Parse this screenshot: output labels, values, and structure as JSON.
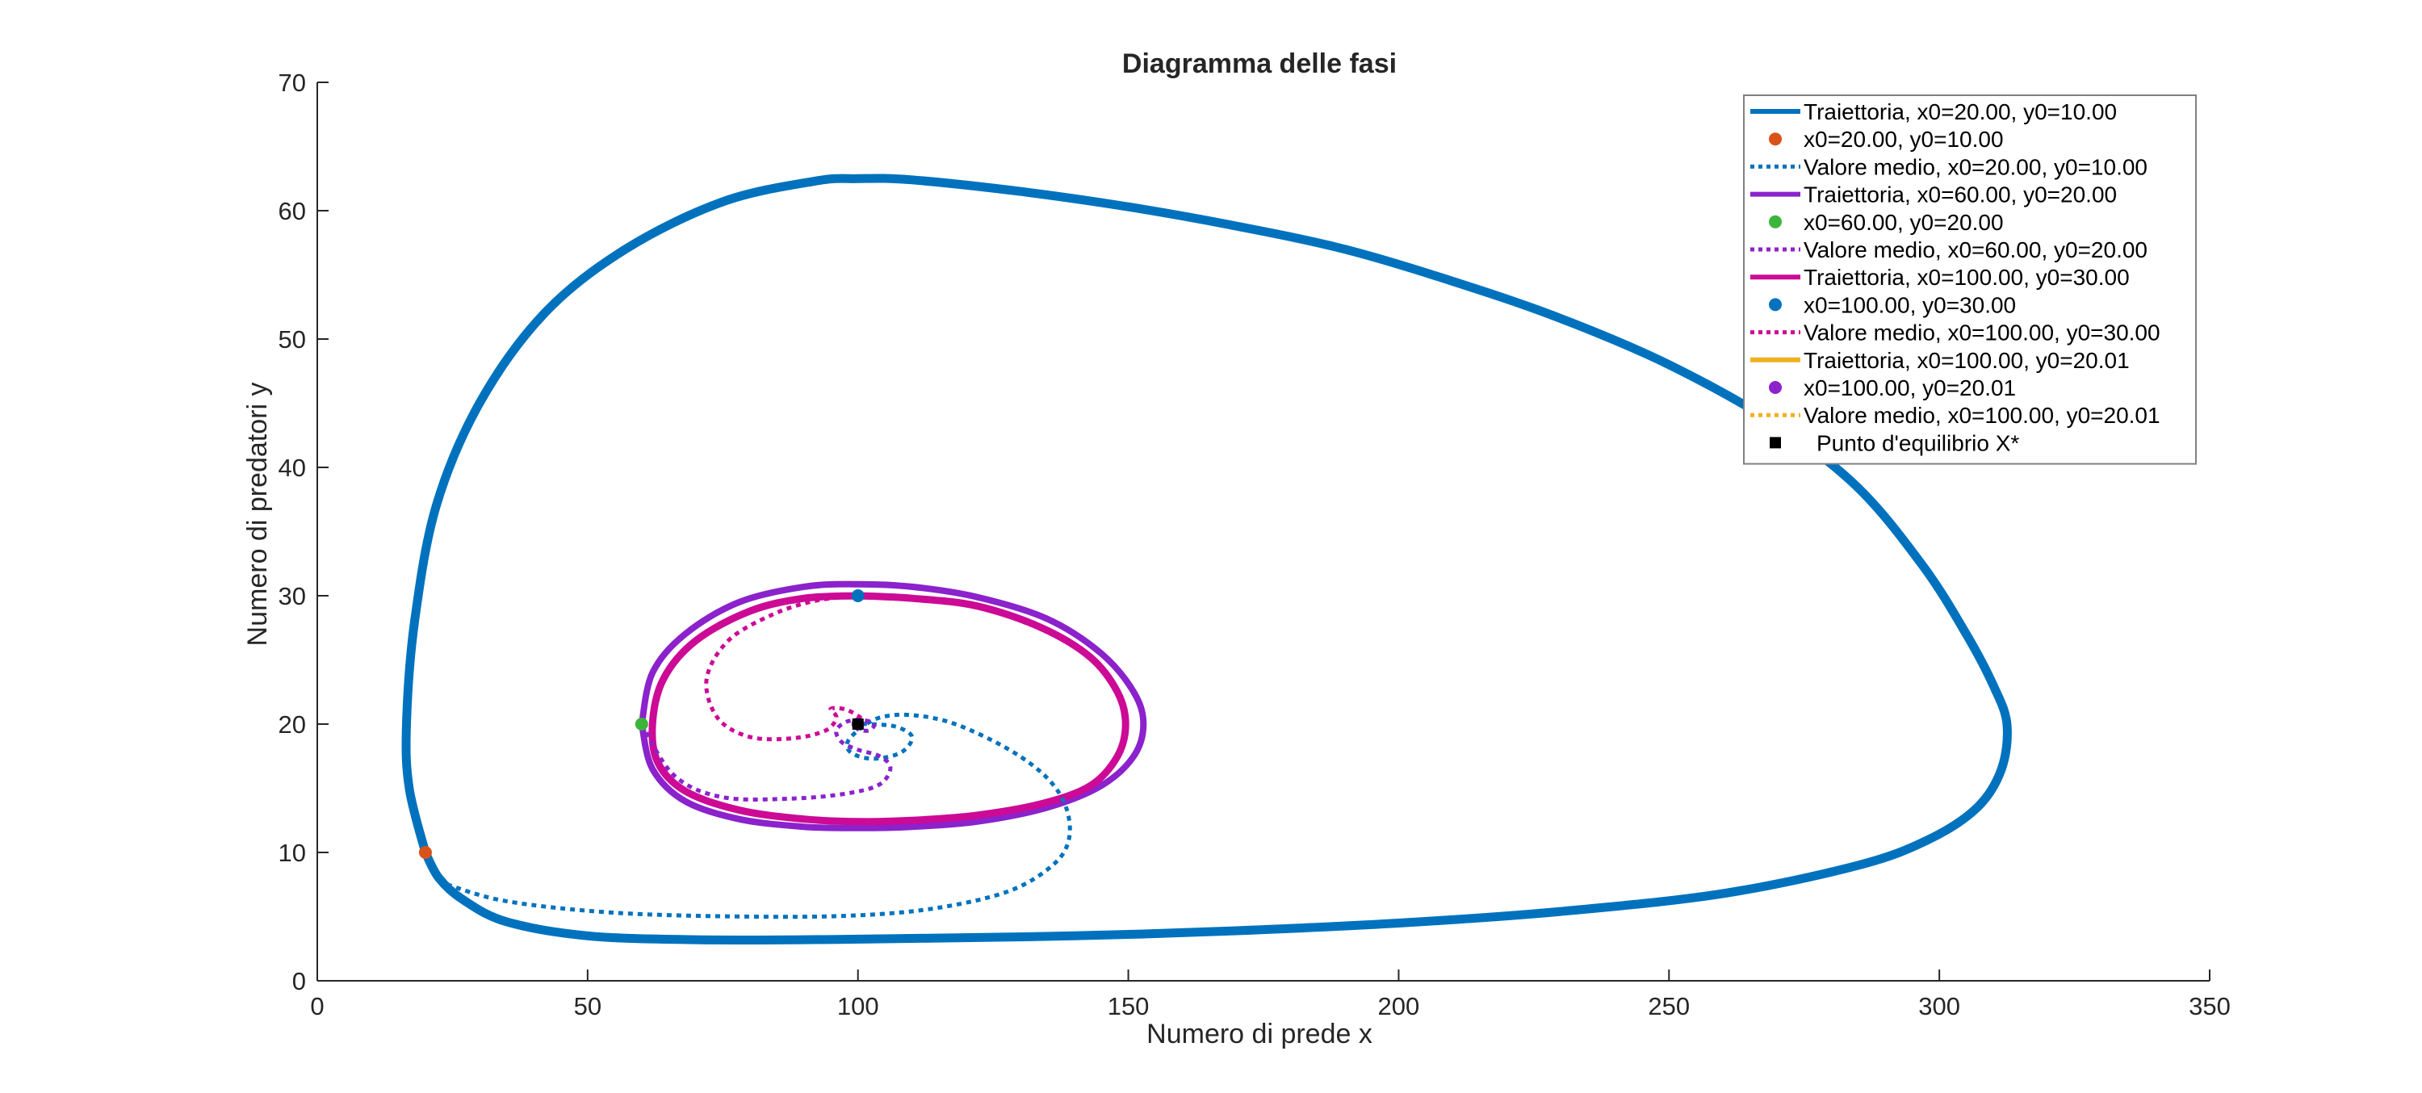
{
  "chart_data": {
    "type": "line",
    "title": "Diagramma delle fasi",
    "xlabel": "Numero di prede x",
    "ylabel": "Numero di predatori y",
    "xlim": [
      0,
      350
    ],
    "ylim": [
      0,
      70
    ],
    "xticks": [
      "0",
      "50",
      "100",
      "150",
      "200",
      "250",
      "300",
      "350"
    ],
    "yticks": [
      "0",
      "10",
      "20",
      "30",
      "40",
      "50",
      "60",
      "70"
    ],
    "grid": false,
    "legend_position": "top-right",
    "colors": {
      "blue": "#0072BD",
      "orange": "#D95319",
      "yellow": "#EDB120",
      "purple": "#7E2F8E",
      "violet": "#8B22CC",
      "green": "#3CB43C",
      "magenta": "#CC0A96",
      "black": "#000000"
    },
    "trajectories": [
      {
        "name": "Traiettoria, x0=20.00, y0=10.00",
        "color": "#0072BD",
        "points": [
          [
            20,
            10
          ],
          [
            17,
            15
          ],
          [
            16.5,
            20
          ],
          [
            18,
            28
          ],
          [
            22,
            37
          ],
          [
            30,
            45
          ],
          [
            42,
            52
          ],
          [
            57,
            57
          ],
          [
            75,
            60.7
          ],
          [
            92,
            62.3
          ],
          [
            100,
            62.5
          ],
          [
            110,
            62.4
          ],
          [
            130,
            61.5
          ],
          [
            150,
            60.3
          ],
          [
            170,
            58.8
          ],
          [
            190,
            57
          ],
          [
            210,
            54.5
          ],
          [
            230,
            51.6
          ],
          [
            250,
            48
          ],
          [
            270,
            43.3
          ],
          [
            285,
            38.4
          ],
          [
            297,
            32.3
          ],
          [
            305,
            27
          ],
          [
            310,
            23
          ],
          [
            312.5,
            20
          ],
          [
            311.5,
            16.5
          ],
          [
            307,
            13.5
          ],
          [
            298,
            11
          ],
          [
            285,
            9
          ],
          [
            260,
            6.8
          ],
          [
            230,
            5.4
          ],
          [
            200,
            4.5
          ],
          [
            170,
            3.9
          ],
          [
            140,
            3.5
          ],
          [
            110,
            3.3
          ],
          [
            90,
            3.2
          ],
          [
            70,
            3.2
          ],
          [
            50,
            3.5
          ],
          [
            35,
            4.6
          ],
          [
            27,
            6.3
          ],
          [
            22.5,
            8
          ],
          [
            20,
            10
          ]
        ]
      },
      {
        "name": "Traiettoria, x0=60.00, y0=20.00",
        "color": "#8B22CC",
        "points": [
          [
            60,
            20
          ],
          [
            62,
            24
          ],
          [
            68,
            27
          ],
          [
            78,
            29.5
          ],
          [
            90,
            30.7
          ],
          [
            100,
            30.9
          ],
          [
            110,
            30.7
          ],
          [
            122,
            29.9
          ],
          [
            135,
            28.2
          ],
          [
            145,
            25.5
          ],
          [
            151,
            22.5
          ],
          [
            152.8,
            20
          ],
          [
            151,
            17.5
          ],
          [
            145,
            15.2
          ],
          [
            135,
            13.5
          ],
          [
            122,
            12.4
          ],
          [
            110,
            12
          ],
          [
            100,
            11.9
          ],
          [
            90,
            12
          ],
          [
            78,
            12.6
          ],
          [
            68,
            14
          ],
          [
            62,
            16.5
          ],
          [
            60,
            20
          ]
        ]
      },
      {
        "name": "Traiettoria, x0=100.00, y0=30.00",
        "color": "#CC0A96",
        "points": [
          [
            100,
            30
          ],
          [
            110,
            29.8
          ],
          [
            122,
            29.2
          ],
          [
            134,
            27.5
          ],
          [
            143,
            25.2
          ],
          [
            148,
            22.5
          ],
          [
            149.5,
            20
          ],
          [
            148,
            17.5
          ],
          [
            143,
            15.2
          ],
          [
            134,
            13.8
          ],
          [
            122,
            12.9
          ],
          [
            110,
            12.5
          ],
          [
            100,
            12.4
          ],
          [
            90,
            12.6
          ],
          [
            78,
            13.3
          ],
          [
            68,
            14.8
          ],
          [
            63,
            17
          ],
          [
            62,
            20
          ],
          [
            64,
            23.5
          ],
          [
            70,
            26.5
          ],
          [
            80,
            28.8
          ],
          [
            90,
            29.8
          ],
          [
            100,
            30
          ]
        ]
      },
      {
        "name": "Traiettoria, x0=100.00, y0=20.01",
        "color": "#EDB120",
        "points": [
          [
            100,
            20.01
          ],
          [
            100.2,
            20.01
          ],
          [
            100.2,
            19.99
          ],
          [
            99.8,
            19.99
          ],
          [
            100,
            20.01
          ]
        ]
      }
    ],
    "mean_values": [
      {
        "name": "Valore medio, x0=20.00, y0=10.00",
        "color": "#0072BD",
        "points": [
          [
            24,
            7.5
          ],
          [
            35,
            6.2
          ],
          [
            55,
            5.3
          ],
          [
            80,
            5
          ],
          [
            100,
            5.1
          ],
          [
            115,
            5.7
          ],
          [
            128,
            7
          ],
          [
            136,
            9
          ],
          [
            139,
            11
          ],
          [
            138.5,
            13.5
          ],
          [
            135,
            15.8
          ],
          [
            128,
            18
          ],
          [
            118,
            20
          ],
          [
            110,
            20.7
          ],
          [
            104,
            20.5
          ],
          [
            100,
            19.5
          ],
          [
            98,
            18.5
          ],
          [
            99,
            17.7
          ],
          [
            103,
            17.3
          ],
          [
            108,
            17.8
          ],
          [
            110,
            19
          ],
          [
            107,
            19.8
          ],
          [
            102,
            20
          ],
          [
            100,
            20
          ]
        ]
      },
      {
        "name": "Valore medio, x0=60.00, y0=20.00",
        "color": "#8B22CC",
        "points": [
          [
            60,
            20
          ],
          [
            66,
            16
          ],
          [
            75,
            14.3
          ],
          [
            88,
            14.2
          ],
          [
            98,
            14.6
          ],
          [
            104,
            15.3
          ],
          [
            106,
            16.6
          ],
          [
            104,
            17.5
          ],
          [
            100,
            18
          ],
          [
            97,
            18.6
          ],
          [
            96,
            19.5
          ],
          [
            98,
            20.2
          ],
          [
            101,
            20.3
          ],
          [
            103,
            20
          ],
          [
            102,
            19.5
          ],
          [
            100,
            19.6
          ],
          [
            100,
            20
          ]
        ]
      },
      {
        "name": "Valore medio, x0=100.00, y0=30.00",
        "color": "#CC0A96",
        "points": [
          [
            100,
            30
          ],
          [
            92,
            29.6
          ],
          [
            84,
            28.5
          ],
          [
            76,
            26.5
          ],
          [
            72,
            23.5
          ],
          [
            74,
            20.5
          ],
          [
            80,
            19
          ],
          [
            88,
            18.9
          ],
          [
            94,
            19.5
          ],
          [
            96,
            20.5
          ],
          [
            95,
            21.2
          ],
          [
            98,
            21.1
          ],
          [
            101,
            20.3
          ],
          [
            100,
            20
          ]
        ]
      },
      {
        "name": "Valore medio, x0=100.00, y0=20.01",
        "color": "#EDB120",
        "points": [
          [
            100,
            20
          ],
          [
            100.1,
            20.01
          ]
        ]
      }
    ],
    "initial_points": [
      {
        "name": "x0=20.00, y0=10.00",
        "x": 20,
        "y": 10,
        "color": "#D95319"
      },
      {
        "name": "x0=60.00, y0=20.00",
        "x": 60,
        "y": 20,
        "color": "#3CB43C"
      },
      {
        "name": "x0=100.00, y0=30.00",
        "x": 100,
        "y": 30,
        "color": "#0072BD"
      },
      {
        "name": "x0=100.00, y0=20.01",
        "x": 100,
        "y": 20.01,
        "color": "#8B22CC"
      }
    ],
    "equilibrium": {
      "name": "Punto d'equilibrio X*",
      "x": 100,
      "y": 20,
      "color": "#000000"
    },
    "legend": [
      {
        "kind": "line",
        "label": "Traiettoria, x0=20.00, y0=10.00",
        "color": "#0072BD"
      },
      {
        "kind": "marker",
        "label": "x0=20.00, y0=10.00",
        "color": "#D95319"
      },
      {
        "kind": "dotted",
        "label": "Valore medio, x0=20.00, y0=10.00",
        "color": "#0072BD"
      },
      {
        "kind": "line",
        "label": "Traiettoria, x0=60.00, y0=20.00",
        "color": "#8B22CC"
      },
      {
        "kind": "marker",
        "label": "x0=60.00, y0=20.00",
        "color": "#3CB43C"
      },
      {
        "kind": "dotted",
        "label": "Valore medio, x0=60.00, y0=20.00",
        "color": "#8B22CC"
      },
      {
        "kind": "line",
        "label": "Traiettoria, x0=100.00, y0=30.00",
        "color": "#CC0A96"
      },
      {
        "kind": "marker",
        "label": "x0=100.00, y0=30.00",
        "color": "#0072BD"
      },
      {
        "kind": "dotted",
        "label": "Valore medio, x0=100.00, y0=30.00",
        "color": "#CC0A96"
      },
      {
        "kind": "line",
        "label": "Traiettoria, x0=100.00, y0=20.01",
        "color": "#EDB120"
      },
      {
        "kind": "marker",
        "label": "x0=100.00, y0=20.01",
        "color": "#8B22CC"
      },
      {
        "kind": "dotted",
        "label": "Valore medio, x0=100.00, y0=20.01",
        "color": "#EDB120"
      },
      {
        "kind": "square",
        "label": "Punto  d'equilibrio  X*",
        "color": "#000000"
      }
    ]
  }
}
